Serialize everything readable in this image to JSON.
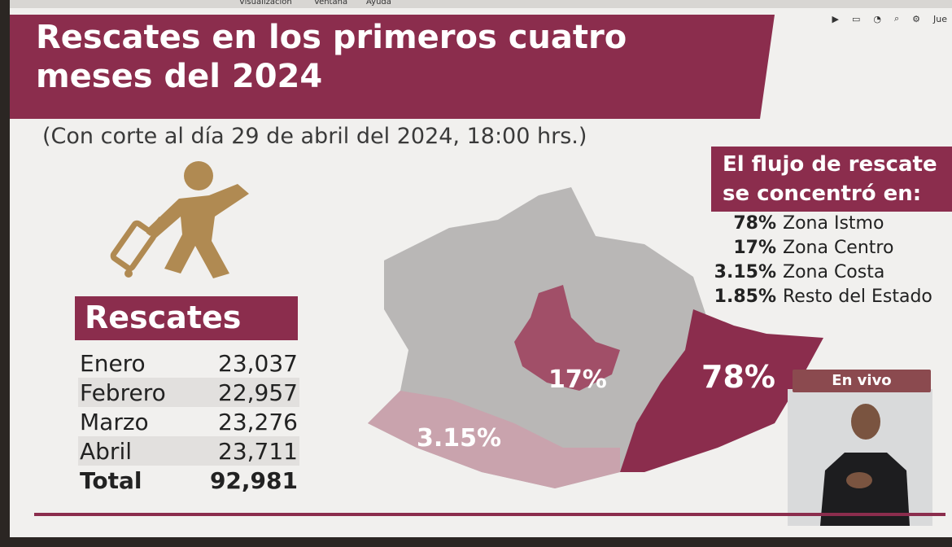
{
  "menubar": {
    "items": [
      "Visualización",
      "Ventana",
      "Ayuda"
    ]
  },
  "system": {
    "day": "Jue"
  },
  "slide": {
    "title_line1": "Rescates en los primeros cuatro",
    "title_line2": "meses del 2024",
    "subtitle": "(Con corte al día 29 de abril del 2024, 18:00 hrs.)",
    "table_title": "Rescates",
    "rows": [
      {
        "month": "Enero",
        "value": "23,037"
      },
      {
        "month": "Febrero",
        "value": "22,957"
      },
      {
        "month": "Marzo",
        "value": "23,276"
      },
      {
        "month": "Abril",
        "value": "23,711"
      }
    ],
    "total": {
      "label": "Total",
      "value": "92,981"
    },
    "flow_title_line1": "El flujo de rescate",
    "flow_title_line2": "se concentró en:",
    "zones": [
      {
        "pct": "78%",
        "name": "Zona Istmo"
      },
      {
        "pct": "17%",
        "name": "Zona Centro"
      },
      {
        "pct": "3.15%",
        "name": "Zona Costa"
      },
      {
        "pct": "1.85%",
        "name": "Resto del Estado"
      }
    ],
    "map_labels": {
      "istmo": "78%",
      "centro": "17%",
      "costa": "3.15%"
    },
    "live_label": "En vivo"
  },
  "colors": {
    "brand": "#8b2d4d",
    "gold": "#b08a52",
    "map_gray": "#b9b7b6"
  }
}
